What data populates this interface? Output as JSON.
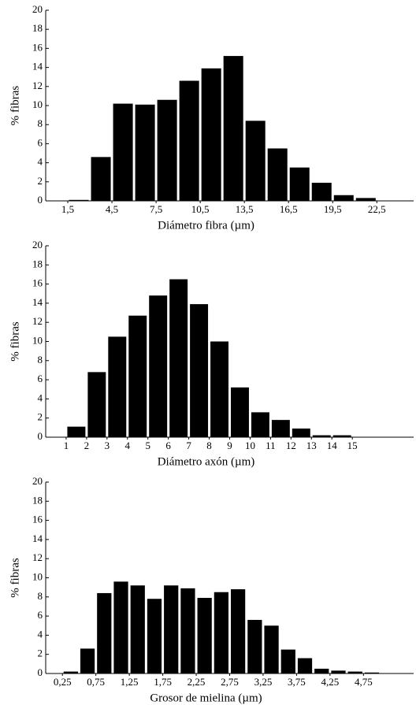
{
  "chart_data": [
    {
      "type": "histogram",
      "xlabel": "Diámetro fibra (µm)",
      "ylabel": "% fibras",
      "color": "#000000",
      "bins": [
        1.5,
        3,
        4.5,
        6,
        7.5,
        9,
        10.5,
        12,
        13.5,
        15,
        16.5,
        18,
        19.5,
        21,
        22.5
      ],
      "values": [
        0.1,
        4.6,
        10.2,
        10.1,
        10.6,
        12.6,
        13.9,
        15.2,
        8.4,
        5.5,
        3.5,
        1.9,
        0.6,
        0.3
      ],
      "xlim": [
        0,
        25
      ],
      "ylim": [
        0,
        20
      ],
      "xticks": [
        {
          "value": 1.5,
          "label": "1,5"
        },
        {
          "value": 4.5,
          "label": "4,5"
        },
        {
          "value": 7.5,
          "label": "7,5"
        },
        {
          "value": 10.5,
          "label": "10,5"
        },
        {
          "value": 13.5,
          "label": "13,5"
        },
        {
          "value": 16.5,
          "label": "16,5"
        },
        {
          "value": 19.5,
          "label": "19,5"
        },
        {
          "value": 22.5,
          "label": "22,5"
        }
      ],
      "yticks": [
        0,
        2,
        4,
        6,
        8,
        10,
        12,
        14,
        16,
        18,
        20
      ]
    },
    {
      "type": "histogram",
      "xlabel": "Diámetro axón (µm)",
      "ylabel": "% fibras",
      "color": "#000000",
      "bins": [
        1,
        2,
        3,
        4,
        5,
        6,
        7,
        8,
        9,
        10,
        11,
        12,
        13,
        14,
        15
      ],
      "values": [
        1.1,
        6.8,
        10.5,
        12.7,
        14.8,
        16.5,
        13.9,
        10.0,
        5.2,
        2.6,
        1.8,
        0.9,
        0.2,
        0.2
      ],
      "xlim": [
        0,
        18
      ],
      "ylim": [
        0,
        20
      ],
      "xticks": [
        1,
        2,
        3,
        4,
        5,
        6,
        7,
        8,
        9,
        10,
        11,
        12,
        13,
        14,
        15
      ],
      "yticks": [
        0,
        2,
        4,
        6,
        8,
        10,
        12,
        14,
        16,
        18,
        20
      ]
    },
    {
      "type": "histogram",
      "xlabel": "Grosor de mielina (µm)",
      "ylabel": "% fibras",
      "color": "#000000",
      "bins": [
        0.25,
        0.5,
        0.75,
        1,
        1.25,
        1.5,
        1.75,
        2,
        2.25,
        2.5,
        2.75,
        3,
        3.25,
        3.5,
        3.75,
        4,
        4.25,
        4.5,
        4.75,
        5
      ],
      "values": [
        0.2,
        2.6,
        8.4,
        9.6,
        9.2,
        7.8,
        9.2,
        8.9,
        7.9,
        8.5,
        8.8,
        5.6,
        5.0,
        2.5,
        1.6,
        0.5,
        0.3,
        0.2,
        0.1
      ],
      "xlim": [
        0,
        5.5
      ],
      "ylim": [
        0,
        20
      ],
      "xticks": [
        {
          "value": 0.25,
          "label": "0,25"
        },
        {
          "value": 0.75,
          "label": "0,75"
        },
        {
          "value": 1.25,
          "label": "1,25"
        },
        {
          "value": 1.75,
          "label": "1,75"
        },
        {
          "value": 2.25,
          "label": "2,25"
        },
        {
          "value": 2.75,
          "label": "2,75"
        },
        {
          "value": 3.25,
          "label": "3,25"
        },
        {
          "value": 3.75,
          "label": "3,75"
        },
        {
          "value": 4.25,
          "label": "4,25"
        },
        {
          "value": 4.75,
          "label": "4,75"
        }
      ],
      "yticks": [
        0,
        2,
        4,
        6,
        8,
        10,
        12,
        14,
        16,
        18,
        20
      ]
    }
  ]
}
